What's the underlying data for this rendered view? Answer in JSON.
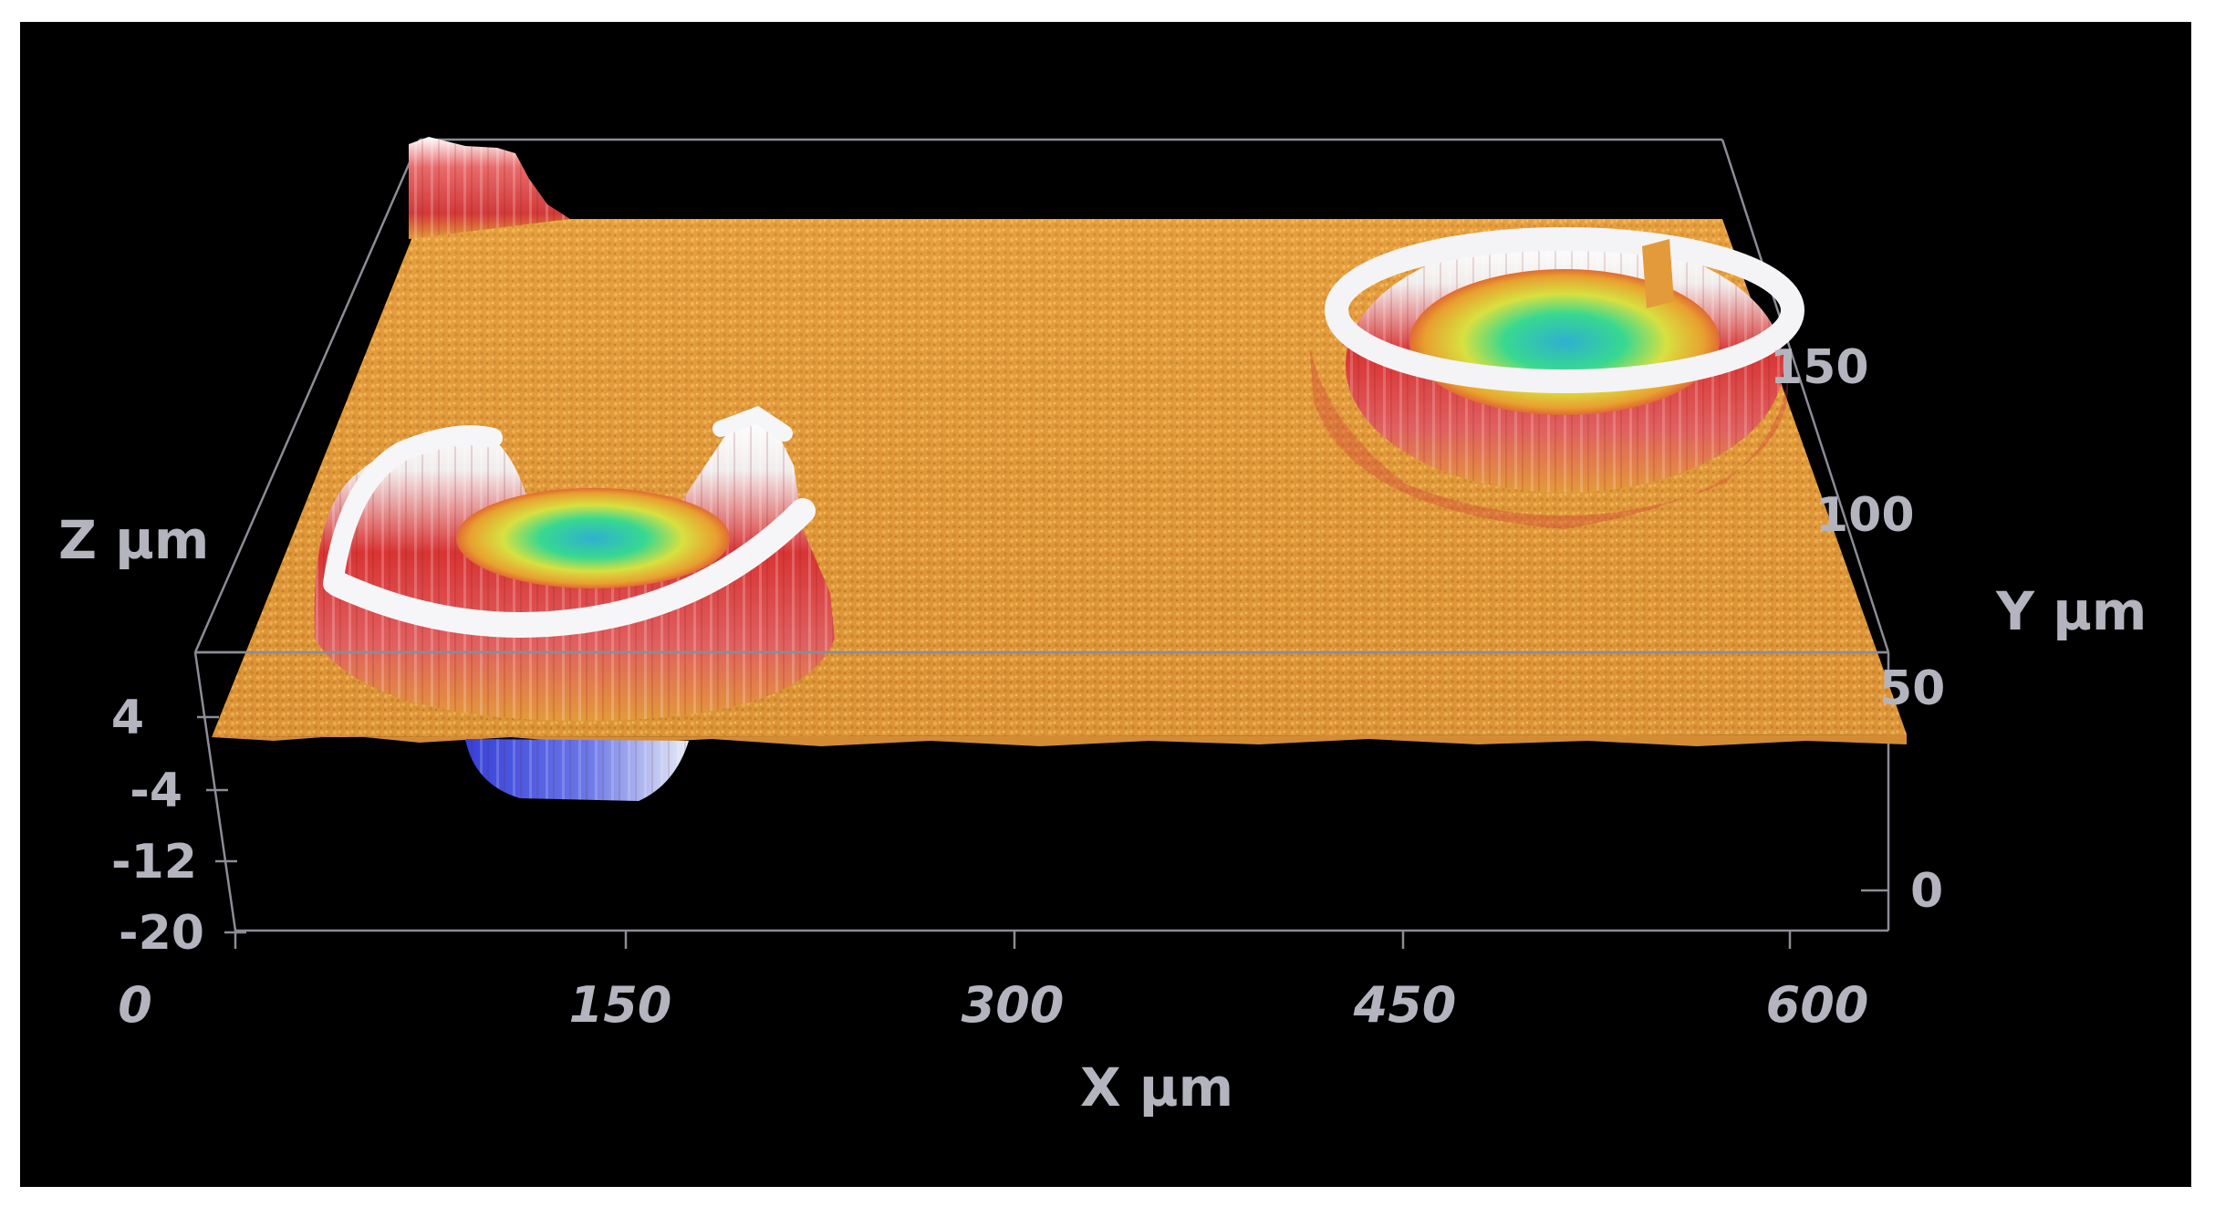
{
  "chart_data": {
    "type": "surface",
    "title": "",
    "xlabel": "X µm",
    "ylabel": "Y µm",
    "zlabel": "Z µm",
    "x_ticks": [
      "0",
      "150",
      "300",
      "450",
      "600"
    ],
    "y_ticks": [
      "0",
      "50",
      "100",
      "150"
    ],
    "z_ticks": [
      "4",
      "-4",
      "-12",
      "-20"
    ],
    "xlim": [
      0,
      630
    ],
    "zlim": [
      -20,
      8
    ],
    "colormap": [
      "#2b3fd6",
      "#5a9cf0",
      "#3fe0a0",
      "#e8e040",
      "#e8a030",
      "#d83030",
      "#ffffff"
    ],
    "background": "#000000",
    "features": [
      {
        "name": "raised ring (front, partially cut)",
        "x_center": 140,
        "z_rim": 8,
        "z_center": -18
      },
      {
        "name": "raised ring (back right)",
        "x_center": 520,
        "z_rim": 8,
        "z_center": 2
      },
      {
        "name": "edge ridge (back left)",
        "x_center": 100,
        "z_rim": 8
      }
    ]
  }
}
